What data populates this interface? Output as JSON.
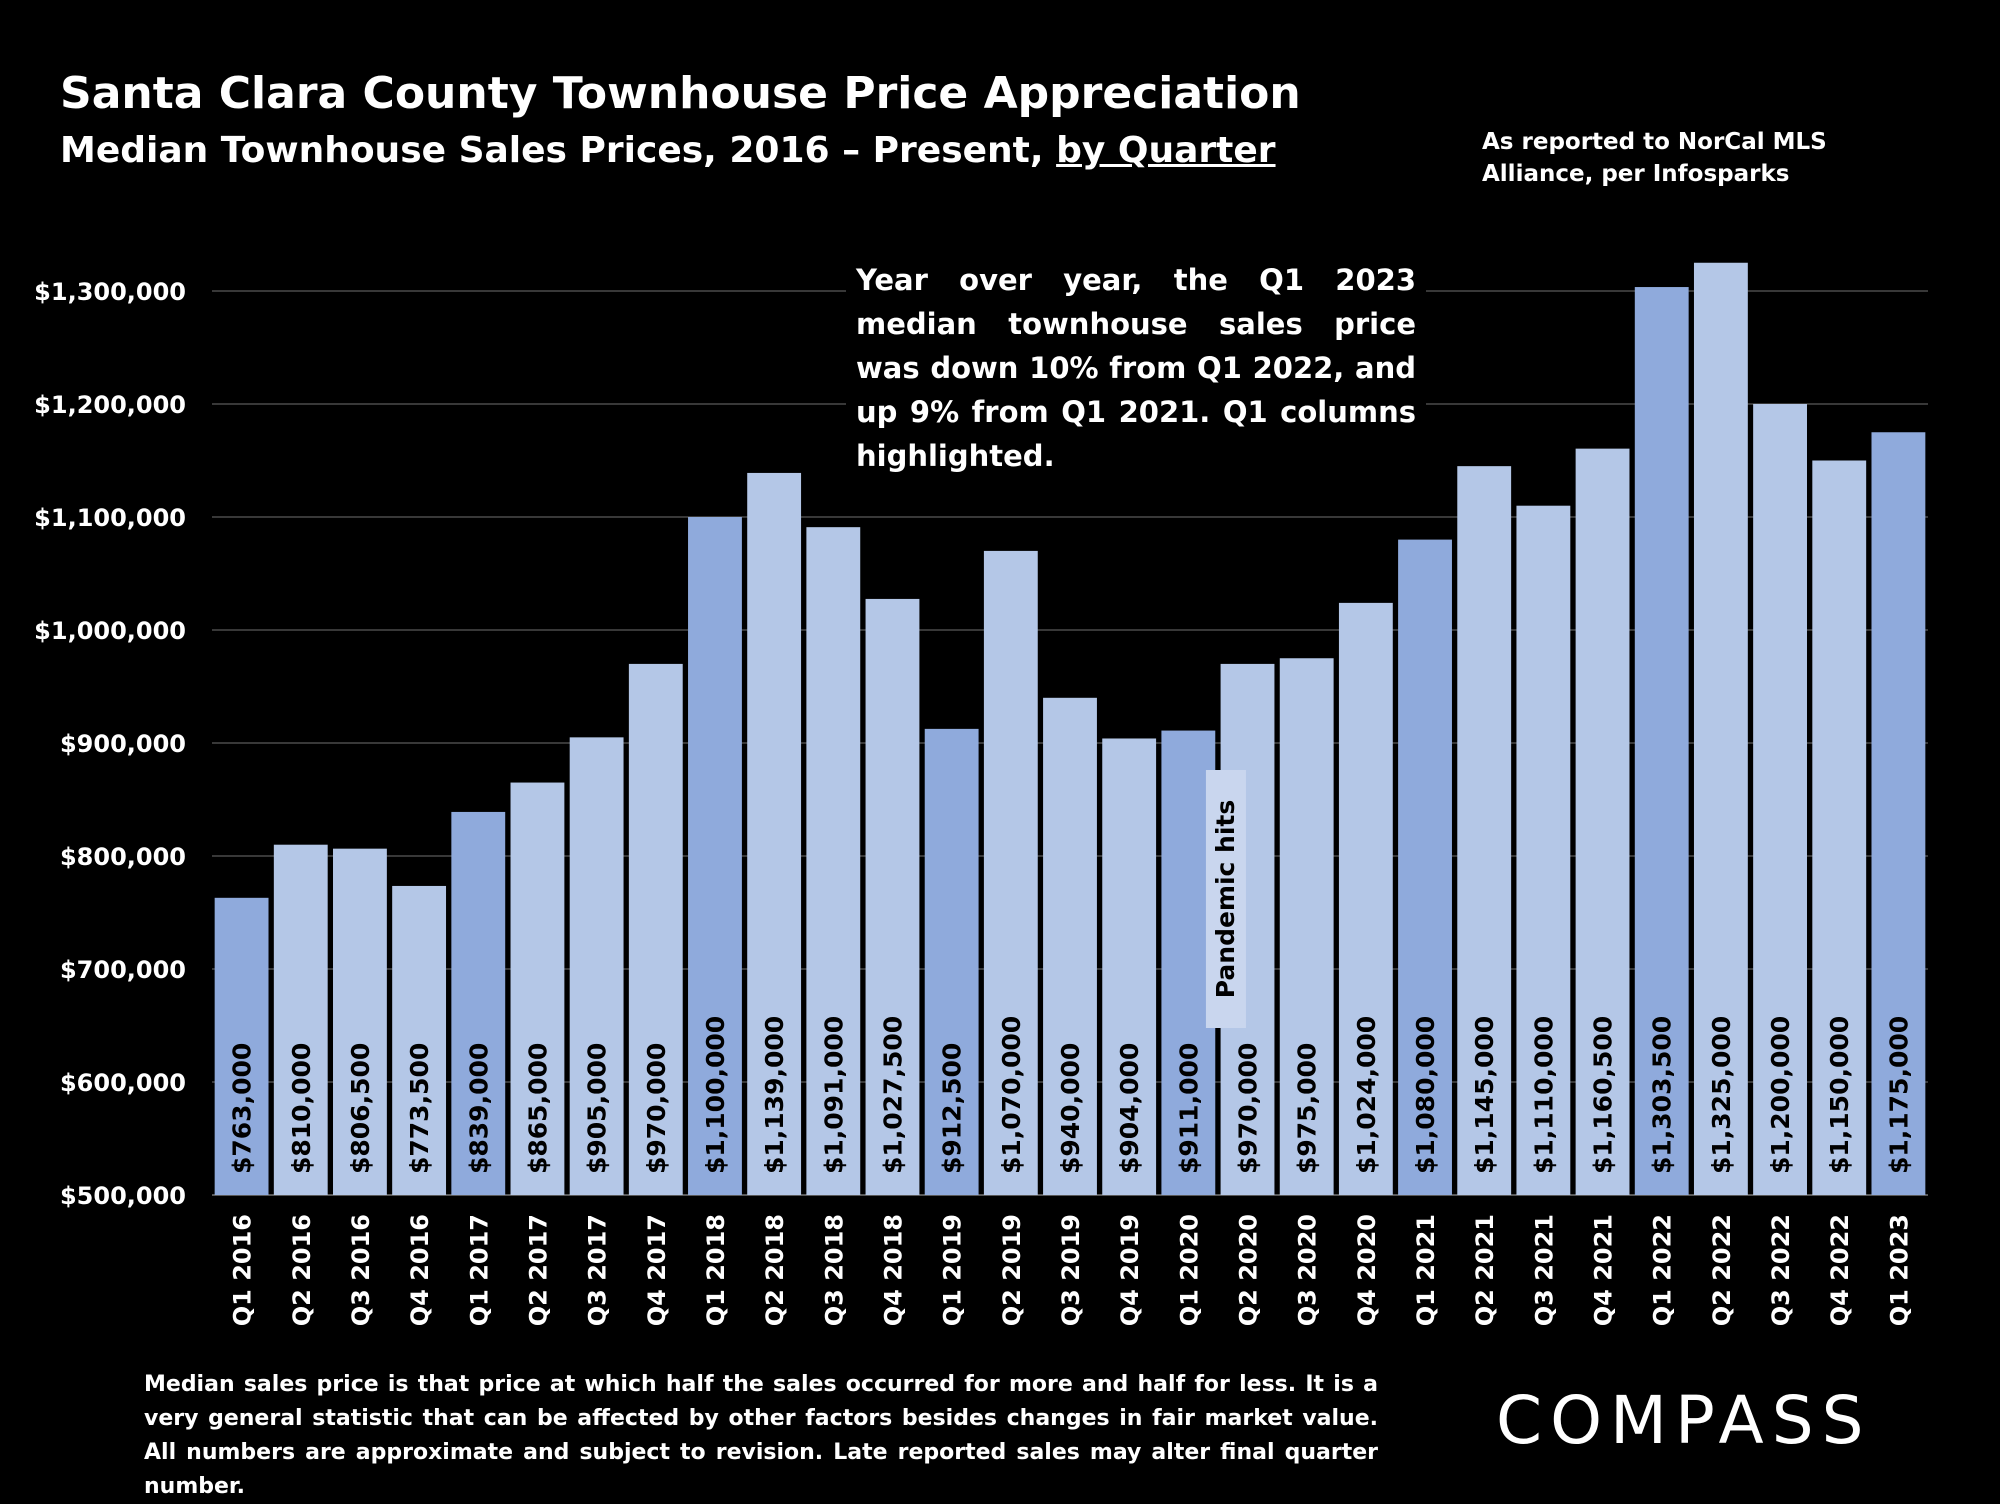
{
  "header": {
    "title": "Santa Clara County Townhouse Price Appreciation",
    "subtitle_prefix": "Median Townhouse Sales Prices, 2016 – Present, ",
    "subtitle_link": "by Quarter",
    "source_line1": "As reported to NorCal MLS",
    "source_line2": "Alliance, per Infosparks"
  },
  "annotation": "Year over year, the Q1 2023 median townhouse sales price was down 10% from Q1 2022, and up 9% from Q1 2021. Q1 columns highlighted.",
  "pandemic_label": "Pandemic hits",
  "footnote": "Median sales price is that price at which half the sales occurred for more and half for less. It is a very general statistic that can be affected by other factors besides changes in fair market value. All numbers are approximate and subject to revision. Late reported sales may alter final quarter number.",
  "logo": "COMPASS",
  "colors": {
    "q1_bar": "#8faadc",
    "other_bar": "#b4c7e7",
    "background": "#000000",
    "gridline": "#595959"
  },
  "chart_data": {
    "type": "bar",
    "categories": [
      "Q1 2016",
      "Q2 2016",
      "Q3 2016",
      "Q4 2016",
      "Q1 2017",
      "Q2 2017",
      "Q3 2017",
      "Q4 2017",
      "Q1 2018",
      "Q2 2018",
      "Q3 2018",
      "Q4 2018",
      "Q1 2019",
      "Q2 2019",
      "Q3 2019",
      "Q4 2019",
      "Q1 2020",
      "Q2 2020",
      "Q3 2020",
      "Q4 2020",
      "Q1 2021",
      "Q2 2021",
      "Q3 2021",
      "Q4 2021",
      "Q1 2022",
      "Q2 2022",
      "Q3 2022",
      "Q4 2022",
      "Q1 2023"
    ],
    "values": [
      763000,
      810000,
      806500,
      773500,
      839000,
      865000,
      905000,
      970000,
      1100000,
      1139000,
      1091000,
      1027500,
      912500,
      1070000,
      940000,
      904000,
      911000,
      970000,
      975000,
      1024000,
      1080000,
      1145000,
      1110000,
      1160500,
      1303500,
      1325000,
      1200000,
      1150000,
      1175000
    ],
    "data_labels": [
      "$763,000",
      "$810,000",
      "$806,500",
      "$773,500",
      "$839,000",
      "$865,000",
      "$905,000",
      "$970,000",
      "$1,100,000",
      "$1,139,000",
      "$1,091,000",
      "$1,027,500",
      "$912,500",
      "$1,070,000",
      "$940,000",
      "$904,000",
      "$911,000",
      "$970,000",
      "$975,000",
      "$1,024,000",
      "$1,080,000",
      "$1,145,000",
      "$1,110,000",
      "$1,160,500",
      "$1,303,500",
      "$1,325,000",
      "$1,200,000",
      "$1,150,000",
      "$1,175,000"
    ],
    "highlighted": [
      true,
      false,
      false,
      false,
      true,
      false,
      false,
      false,
      true,
      false,
      false,
      false,
      true,
      false,
      false,
      false,
      true,
      false,
      false,
      false,
      true,
      false,
      false,
      false,
      true,
      false,
      false,
      false,
      true
    ],
    "y_ticks": [
      500000,
      600000,
      700000,
      800000,
      900000,
      1000000,
      1100000,
      1200000,
      1300000
    ],
    "y_tick_labels": [
      "$500,000",
      "$600,000",
      "$700,000",
      "$800,000",
      "$900,000",
      "$1,000,000",
      "$1,100,000",
      "$1,200,000",
      "$1,300,000"
    ],
    "ylim": [
      500000,
      1350000
    ],
    "grid": true,
    "legend": "none"
  }
}
